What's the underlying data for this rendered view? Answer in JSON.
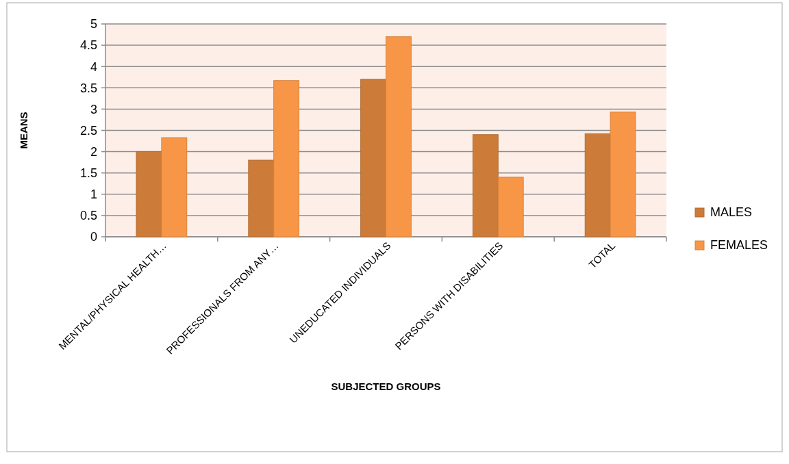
{
  "chart_data": {
    "type": "bar",
    "xlabel": "SUBJECTED GROUPS",
    "ylabel": "MEANS",
    "categories": [
      "MENTAL/PHYSICAL HEALTH…",
      "PROFESSIONALS FROM ANY…",
      "UNEDUCATED INDIVIDUALS",
      "PERSONS WITH DISABILITIES",
      "TOTAL"
    ],
    "series": [
      {
        "name": "MALES",
        "color": "#cd7b38",
        "values": [
          2.0,
          1.8,
          3.7,
          2.4,
          2.42
        ]
      },
      {
        "name": "FEMALES",
        "color": "#f79646",
        "values": [
          2.33,
          3.67,
          4.7,
          1.4,
          2.93
        ]
      }
    ],
    "ylim": [
      0,
      5
    ],
    "yticks": [
      0,
      0.5,
      1,
      1.5,
      2,
      2.5,
      3,
      3.5,
      4,
      4.5,
      5
    ],
    "grid": "y",
    "legend": "right"
  }
}
